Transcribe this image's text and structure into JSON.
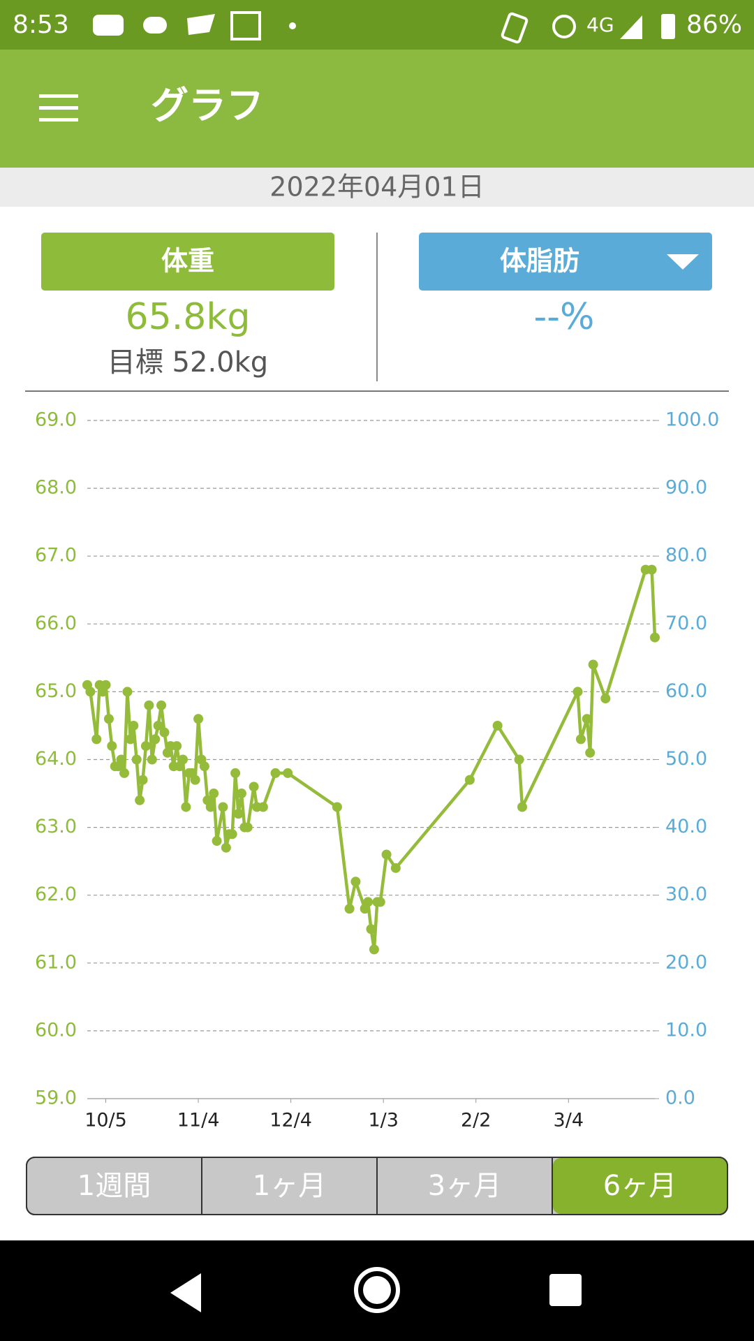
{
  "status_bar": {
    "time": "8:53",
    "network": "4G",
    "battery": "86%"
  },
  "app_bar": {
    "title": "グラフ"
  },
  "date": "2022年04月01日",
  "weight": {
    "label": "体重",
    "value": "65.8kg",
    "target": "目標 52.0kg"
  },
  "body_fat": {
    "label": "体脂肪",
    "value": "--%"
  },
  "chart_data": {
    "type": "line",
    "x": [
      -6,
      -5,
      -3,
      -2,
      -1,
      0,
      1,
      2,
      3,
      4,
      5,
      6,
      7,
      8,
      9,
      10,
      11,
      12,
      13,
      14,
      15,
      16,
      17,
      18,
      19,
      20,
      21,
      22,
      23,
      24,
      25,
      26,
      27,
      28,
      29,
      30,
      31,
      32,
      33,
      34,
      35,
      36,
      38,
      39,
      40,
      41,
      42,
      43,
      44,
      45,
      46,
      48,
      49,
      51,
      55,
      59,
      75,
      79,
      81,
      84,
      85,
      86,
      87,
      88,
      89,
      91,
      94,
      118,
      127,
      134,
      135,
      153,
      154,
      156,
      157,
      158,
      162,
      175,
      177,
      178
    ],
    "values": [
      65.1,
      65.0,
      64.3,
      65.1,
      65.0,
      65.1,
      64.6,
      64.2,
      63.9,
      63.9,
      64.0,
      63.8,
      65.0,
      64.3,
      64.5,
      64.0,
      63.4,
      63.7,
      64.2,
      64.8,
      64.0,
      64.3,
      64.5,
      64.8,
      64.4,
      64.1,
      64.2,
      63.9,
      64.2,
      63.9,
      64.0,
      63.3,
      63.8,
      63.8,
      63.7,
      64.6,
      64.0,
      63.9,
      63.4,
      63.3,
      63.5,
      62.8,
      63.3,
      62.7,
      62.9,
      62.9,
      63.8,
      63.2,
      63.5,
      63.0,
      63.0,
      63.6,
      63.3,
      63.3,
      63.8,
      63.8,
      63.3,
      61.8,
      62.2,
      61.8,
      61.9,
      61.5,
      61.2,
      61.9,
      61.9,
      62.6,
      62.4,
      63.7,
      64.5,
      64.0,
      63.3,
      65.0,
      64.3,
      64.6,
      64.1,
      65.4,
      64.9,
      66.8,
      66.8,
      65.8
    ],
    "color": "#95bb3a",
    "xlim": [
      -6,
      178
    ],
    "xticks": [
      {
        "value": 0,
        "label": "10/5"
      },
      {
        "value": 30,
        "label": "11/4"
      },
      {
        "value": 60,
        "label": "12/4"
      },
      {
        "value": 90,
        "label": "1/3"
      },
      {
        "value": 120,
        "label": "2/2"
      },
      {
        "value": 150,
        "label": "3/4"
      }
    ],
    "ylim": [
      59,
      69
    ],
    "yticks": [
      {
        "value": 59,
        "label": "59.0"
      },
      {
        "value": 60,
        "label": "60.0"
      },
      {
        "value": 61,
        "label": "61.0"
      },
      {
        "value": 62,
        "label": "62.0"
      },
      {
        "value": 63,
        "label": "63.0"
      },
      {
        "value": 64,
        "label": "64.0"
      },
      {
        "value": 65,
        "label": "65.0"
      },
      {
        "value": 66,
        "label": "66.0"
      },
      {
        "value": 67,
        "label": "67.0"
      },
      {
        "value": 68,
        "label": "68.0"
      },
      {
        "value": 69,
        "label": "69.0"
      }
    ],
    "y2lim": [
      0,
      100
    ],
    "y2ticks": [
      {
        "value": 0,
        "label": "0.0"
      },
      {
        "value": 10,
        "label": "10.0"
      },
      {
        "value": 20,
        "label": "20.0"
      },
      {
        "value": 30,
        "label": "30.0"
      },
      {
        "value": 40,
        "label": "40.0"
      },
      {
        "value": 50,
        "label": "50.0"
      },
      {
        "value": 60,
        "label": "60.0"
      },
      {
        "value": 70,
        "label": "70.0"
      },
      {
        "value": 80,
        "label": "80.0"
      },
      {
        "value": 90,
        "label": "90.0"
      },
      {
        "value": 100,
        "label": "100.0"
      }
    ],
    "grid": true
  },
  "periods": [
    "1週間",
    "1ヶ月",
    "3ヶ月",
    "6ヶ月"
  ],
  "selected_period": 3
}
